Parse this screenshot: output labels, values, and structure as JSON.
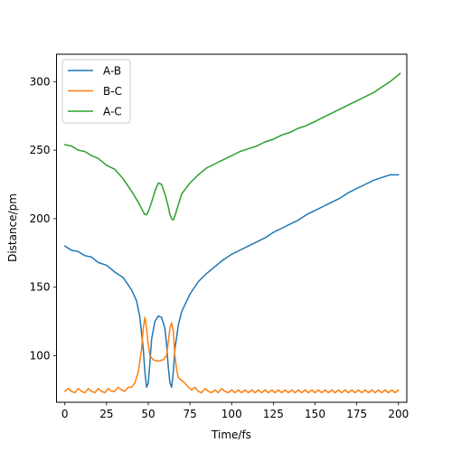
{
  "chart_data": {
    "type": "line",
    "xlabel": "Time/fs",
    "ylabel": "Distance/pm",
    "xlim": [
      -5,
      205
    ],
    "ylim": [
      66,
      320
    ],
    "xticks": [
      0,
      25,
      50,
      75,
      100,
      125,
      150,
      175,
      200
    ],
    "yticks": [
      100,
      150,
      200,
      250,
      300
    ],
    "grid": false,
    "legend_position": "top-left",
    "series": [
      {
        "name": "A-B",
        "color": "#1f77b4",
        "points": [
          [
            0,
            180
          ],
          [
            4,
            177
          ],
          [
            8,
            176
          ],
          [
            12,
            173
          ],
          [
            16,
            172
          ],
          [
            20,
            168
          ],
          [
            25,
            166
          ],
          [
            30,
            161
          ],
          [
            35,
            157
          ],
          [
            40,
            148
          ],
          [
            43,
            140
          ],
          [
            45,
            128
          ],
          [
            47,
            105
          ],
          [
            48,
            88
          ],
          [
            49,
            77
          ],
          [
            50,
            80
          ],
          [
            51,
            95
          ],
          [
            52,
            112
          ],
          [
            54,
            125
          ],
          [
            56,
            129
          ],
          [
            58,
            128
          ],
          [
            60,
            120
          ],
          [
            61,
            108
          ],
          [
            62,
            92
          ],
          [
            63,
            80
          ],
          [
            64,
            77
          ],
          [
            65,
            88
          ],
          [
            66,
            105
          ],
          [
            68,
            122
          ],
          [
            70,
            132
          ],
          [
            75,
            145
          ],
          [
            80,
            154
          ],
          [
            85,
            160
          ],
          [
            90,
            165
          ],
          [
            95,
            170
          ],
          [
            100,
            174
          ],
          [
            105,
            177
          ],
          [
            110,
            180
          ],
          [
            115,
            183
          ],
          [
            120,
            186
          ],
          [
            125,
            190
          ],
          [
            130,
            193
          ],
          [
            135,
            196
          ],
          [
            140,
            199
          ],
          [
            145,
            203
          ],
          [
            150,
            206
          ],
          [
            155,
            209
          ],
          [
            160,
            212
          ],
          [
            165,
            215
          ],
          [
            170,
            219
          ],
          [
            175,
            222
          ],
          [
            180,
            225
          ],
          [
            185,
            228
          ],
          [
            190,
            230
          ],
          [
            195,
            232
          ],
          [
            200,
            232
          ]
        ]
      },
      {
        "name": "B-C",
        "color": "#ff7f0e",
        "points": [
          [
            0,
            74
          ],
          [
            2,
            76
          ],
          [
            4,
            74
          ],
          [
            6,
            73
          ],
          [
            8,
            76
          ],
          [
            10,
            74
          ],
          [
            12,
            73
          ],
          [
            14,
            76
          ],
          [
            16,
            74
          ],
          [
            18,
            73
          ],
          [
            20,
            76
          ],
          [
            22,
            74
          ],
          [
            24,
            73
          ],
          [
            26,
            76
          ],
          [
            28,
            74
          ],
          [
            30,
            74
          ],
          [
            32,
            77
          ],
          [
            34,
            75
          ],
          [
            36,
            74
          ],
          [
            38,
            77
          ],
          [
            40,
            77
          ],
          [
            42,
            80
          ],
          [
            44,
            88
          ],
          [
            46,
            105
          ],
          [
            47,
            120
          ],
          [
            48,
            128
          ],
          [
            49,
            120
          ],
          [
            50,
            108
          ],
          [
            51,
            100
          ],
          [
            53,
            97
          ],
          [
            56,
            96
          ],
          [
            59,
            97
          ],
          [
            61,
            100
          ],
          [
            62,
            110
          ],
          [
            63,
            120
          ],
          [
            64,
            124
          ],
          [
            65,
            118
          ],
          [
            66,
            100
          ],
          [
            67,
            90
          ],
          [
            68,
            84
          ],
          [
            70,
            82
          ],
          [
            72,
            80
          ],
          [
            74,
            77
          ],
          [
            76,
            75
          ],
          [
            78,
            77
          ],
          [
            80,
            74
          ],
          [
            82,
            73
          ],
          [
            84,
            76
          ],
          [
            86,
            74
          ],
          [
            88,
            73
          ],
          [
            90,
            75
          ],
          [
            92,
            73
          ],
          [
            94,
            76
          ],
          [
            96,
            74
          ],
          [
            98,
            73
          ],
          [
            100,
            75
          ],
          [
            102,
            73
          ],
          [
            104,
            75
          ],
          [
            106,
            73
          ],
          [
            108,
            75
          ],
          [
            110,
            73
          ],
          [
            112,
            75
          ],
          [
            114,
            73
          ],
          [
            116,
            75
          ],
          [
            118,
            73
          ],
          [
            120,
            75
          ],
          [
            122,
            73
          ],
          [
            124,
            75
          ],
          [
            126,
            73
          ],
          [
            128,
            75
          ],
          [
            130,
            73
          ],
          [
            132,
            75
          ],
          [
            134,
            73
          ],
          [
            136,
            75
          ],
          [
            138,
            73
          ],
          [
            140,
            75
          ],
          [
            142,
            73
          ],
          [
            144,
            75
          ],
          [
            146,
            73
          ],
          [
            148,
            75
          ],
          [
            150,
            73
          ],
          [
            152,
            75
          ],
          [
            154,
            73
          ],
          [
            156,
            75
          ],
          [
            158,
            73
          ],
          [
            160,
            75
          ],
          [
            162,
            73
          ],
          [
            164,
            75
          ],
          [
            166,
            73
          ],
          [
            168,
            75
          ],
          [
            170,
            73
          ],
          [
            172,
            75
          ],
          [
            174,
            73
          ],
          [
            176,
            75
          ],
          [
            178,
            73
          ],
          [
            180,
            75
          ],
          [
            182,
            73
          ],
          [
            184,
            75
          ],
          [
            186,
            73
          ],
          [
            188,
            75
          ],
          [
            190,
            73
          ],
          [
            192,
            75
          ],
          [
            194,
            73
          ],
          [
            196,
            75
          ],
          [
            198,
            73
          ],
          [
            200,
            75
          ]
        ]
      },
      {
        "name": "A-C",
        "color": "#2ca02c",
        "points": [
          [
            0,
            254
          ],
          [
            4,
            253
          ],
          [
            8,
            250
          ],
          [
            12,
            249
          ],
          [
            16,
            246
          ],
          [
            20,
            244
          ],
          [
            25,
            239
          ],
          [
            30,
            236
          ],
          [
            35,
            229
          ],
          [
            40,
            220
          ],
          [
            44,
            212
          ],
          [
            47,
            205
          ],
          [
            48,
            203
          ],
          [
            49,
            203
          ],
          [
            50,
            205
          ],
          [
            52,
            212
          ],
          [
            54,
            220
          ],
          [
            56,
            226
          ],
          [
            58,
            225
          ],
          [
            60,
            218
          ],
          [
            62,
            209
          ],
          [
            63,
            203
          ],
          [
            64,
            200
          ],
          [
            65,
            199
          ],
          [
            66,
            202
          ],
          [
            68,
            210
          ],
          [
            70,
            218
          ],
          [
            75,
            226
          ],
          [
            80,
            232
          ],
          [
            85,
            237
          ],
          [
            90,
            240
          ],
          [
            95,
            243
          ],
          [
            100,
            246
          ],
          [
            105,
            249
          ],
          [
            110,
            251
          ],
          [
            115,
            253
          ],
          [
            120,
            256
          ],
          [
            125,
            258
          ],
          [
            130,
            261
          ],
          [
            135,
            263
          ],
          [
            140,
            266
          ],
          [
            145,
            268
          ],
          [
            150,
            271
          ],
          [
            155,
            274
          ],
          [
            160,
            277
          ],
          [
            165,
            280
          ],
          [
            170,
            283
          ],
          [
            175,
            286
          ],
          [
            180,
            289
          ],
          [
            185,
            292
          ],
          [
            190,
            296
          ],
          [
            195,
            300
          ],
          [
            200,
            305
          ],
          [
            201,
            306
          ]
        ]
      }
    ]
  }
}
